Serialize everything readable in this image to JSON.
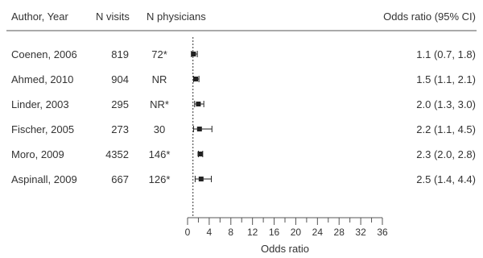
{
  "chart_data": {
    "type": "forest",
    "columns": {
      "study": "Author, Year",
      "visits": "N visits",
      "physicians": "N physicians",
      "estimate": "Odds ratio (95% CI)"
    },
    "studies": [
      {
        "label": "Coenen, 2006",
        "visits": "819",
        "physicians": "72*",
        "or": 1.1,
        "lower": 0.7,
        "upper": 1.8,
        "ci_text": "1.1 (0.7, 1.8)"
      },
      {
        "label": "Ahmed, 2010",
        "visits": "904",
        "physicians": "NR",
        "or": 1.5,
        "lower": 1.1,
        "upper": 2.1,
        "ci_text": "1.5 (1.1, 2.1)"
      },
      {
        "label": "Linder, 2003",
        "visits": "295",
        "physicians": "NR*",
        "or": 2.0,
        "lower": 1.3,
        "upper": 3.0,
        "ci_text": "2.0 (1.3, 3.0)"
      },
      {
        "label": "Fischer, 2005",
        "visits": "273",
        "physicians": "30",
        "or": 2.2,
        "lower": 1.1,
        "upper": 4.5,
        "ci_text": "2.2 (1.1, 4.5)"
      },
      {
        "label": "Moro, 2009",
        "visits": "4352",
        "physicians": "146*",
        "or": 2.3,
        "lower": 2.0,
        "upper": 2.8,
        "ci_text": "2.3 (2.0, 2.8)"
      },
      {
        "label": "Aspinall, 2009",
        "visits": "667",
        "physicians": "126*",
        "or": 2.5,
        "lower": 1.4,
        "upper": 4.4,
        "ci_text": "2.5 (1.4, 4.4)"
      }
    ],
    "xlabel": "Odds ratio",
    "xlim": [
      0,
      36
    ],
    "xticks": [
      0,
      4,
      8,
      12,
      16,
      20,
      24,
      28,
      32,
      36
    ],
    "xminor_step": 2,
    "reference_line": 1,
    "grid": false,
    "colors": {
      "text": "#333333",
      "marker": "#222222",
      "axis": "#555555",
      "divider": "#555555"
    }
  }
}
